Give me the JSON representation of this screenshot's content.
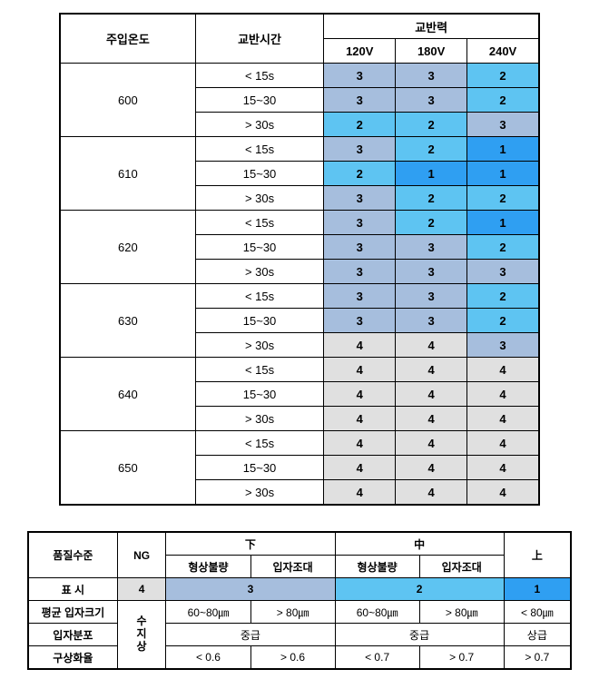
{
  "colors": {
    "c1": "#2f9ff2",
    "c2": "#5ec4f2",
    "c3": "#a6bedd",
    "c4": "#e0e0e0",
    "white": "#ffffff"
  },
  "main": {
    "headers": {
      "temp": "주입온도",
      "time": "교반시간",
      "power": "교반력",
      "v120": "120V",
      "v180": "180V",
      "v240": "240V"
    },
    "temps": [
      "600",
      "610",
      "620",
      "630",
      "640",
      "650"
    ],
    "times": [
      "< 15s",
      "15~30",
      "> 30s"
    ],
    "values": [
      [
        [
          3,
          3,
          2
        ],
        [
          3,
          3,
          2
        ],
        [
          2,
          2,
          3
        ]
      ],
      [
        [
          3,
          2,
          1
        ],
        [
          2,
          1,
          1
        ],
        [
          3,
          2,
          2
        ]
      ],
      [
        [
          3,
          2,
          1
        ],
        [
          3,
          3,
          2
        ],
        [
          3,
          3,
          3
        ]
      ],
      [
        [
          3,
          3,
          2
        ],
        [
          3,
          3,
          2
        ],
        [
          4,
          4,
          3
        ]
      ],
      [
        [
          4,
          4,
          4
        ],
        [
          4,
          4,
          4
        ],
        [
          4,
          4,
          4
        ]
      ],
      [
        [
          4,
          4,
          4
        ],
        [
          4,
          4,
          4
        ],
        [
          4,
          4,
          4
        ]
      ]
    ]
  },
  "legend": {
    "quality_label": "품질수준",
    "ng": "NG",
    "low": "下",
    "mid": "中",
    "high": "上",
    "shape_defect": "형상불량",
    "grain_coarse": "입자조대",
    "display": "표    시",
    "avg_grain": "평균 입자크기",
    "grain_dist": "입자분포",
    "spheroidicity": "구상화율",
    "vertical_label": "수지상",
    "marks": {
      "4": "4",
      "3": "3",
      "2": "2",
      "1": "1"
    },
    "grain_a": "60~80㎛",
    "grain_b": "> 80㎛",
    "grain_c": "60~80㎛",
    "grain_d": "> 80㎛",
    "grain_e": "< 80㎛",
    "dist_mid": "중급",
    "dist_high": "상급",
    "sph_a": "< 0.6",
    "sph_b": "> 0.6",
    "sph_c": "< 0.7",
    "sph_d": "> 0.7",
    "sph_e": "> 0.7"
  }
}
